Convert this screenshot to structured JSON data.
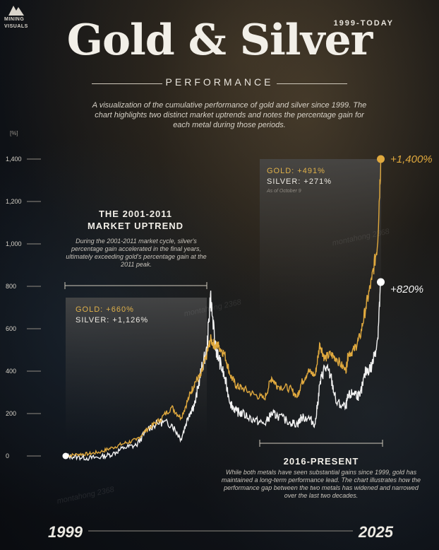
{
  "brand": {
    "line1": "MINING",
    "line2": "VISUALS"
  },
  "header": {
    "year_range": "1999-TODAY",
    "title": "Gold & Silver",
    "subtitle": "PERFORMANCE",
    "intro": "A visualization of the cumulative performance of gold and silver since 1999. The chart highlights two distinct market uptrends and notes the percentage gain for each metal during those periods."
  },
  "colors": {
    "gold": "#e0a93e",
    "silver": "#f2f2f2",
    "panel": "#3a3a3a"
  },
  "annotations": {
    "uptrend": {
      "title_line1": "THE 2001-2011",
      "title_line2": "MARKET UPTREND",
      "text": "During the 2001-2011 market cycle, silver's percentage gain accelerated in the final years, ultimately exceeding gold's percentage gain at the 2011 peak.",
      "gold_gain": "GOLD: +660%",
      "silver_gain": "SILVER: +1,126%"
    },
    "present": {
      "title": "2016-PRESENT",
      "text": "While both metals have seen substantial gains since 1999, gold has maintained a long-term performance lead. The chart illustrates how the performance gap between the two metals has widened and narrowed over the last two decades.",
      "gold_gain": "GOLD: +491%",
      "silver_gain": "SILVER: +271%",
      "as_of": "As of October 9"
    }
  },
  "end_labels": {
    "gold": "+1,400%",
    "silver": "+820%"
  },
  "axis": {
    "start_year": "1999",
    "end_year": "2025"
  },
  "watermarks": [
    "montahong 2368",
    "montahong 2368",
    "montahong 2368"
  ],
  "chart_data": {
    "type": "line",
    "ylabel": "[%]",
    "ylim": [
      0,
      1400
    ],
    "yticks": [
      0,
      200,
      400,
      600,
      800,
      1000,
      1200,
      1400
    ],
    "ytick_labels": [
      "0",
      "200",
      "400",
      "600",
      "800",
      "1,000",
      "1,200",
      "1,400"
    ],
    "xlim": [
      1999,
      2025.8
    ],
    "x": [
      1999,
      2000,
      2001,
      2002,
      2003,
      2004,
      2005,
      2006,
      2007,
      2008,
      2008.8,
      2009.5,
      2010,
      2010.5,
      2011,
      2011.3,
      2011.7,
      2012,
      2012.5,
      2013,
      2013.5,
      2014,
      2015,
      2015.9,
      2016.5,
      2017,
      2018,
      2018.7,
      2019,
      2019.6,
      2020.2,
      2020.6,
      2021,
      2021.5,
      2022,
      2022.8,
      2023,
      2023.5,
      2024,
      2024.5,
      2025,
      2025.5,
      2025.77
    ],
    "series": [
      {
        "name": "GOLD",
        "values": [
          0,
          8,
          10,
          20,
          40,
          60,
          75,
          130,
          170,
          230,
          180,
          280,
          350,
          380,
          480,
          550,
          520,
          520,
          480,
          380,
          330,
          320,
          290,
          270,
          370,
          330,
          320,
          280,
          340,
          400,
          380,
          530,
          460,
          480,
          460,
          400,
          480,
          500,
          560,
          700,
          830,
          1000,
          1400
        ]
      },
      {
        "name": "SILVER",
        "values": [
          0,
          -5,
          -10,
          -5,
          10,
          40,
          50,
          130,
          160,
          150,
          80,
          200,
          250,
          400,
          500,
          760,
          520,
          460,
          370,
          250,
          210,
          200,
          170,
          150,
          200,
          190,
          160,
          150,
          180,
          180,
          150,
          340,
          420,
          380,
          250,
          230,
          280,
          300,
          280,
          400,
          420,
          550,
          820
        ]
      }
    ]
  }
}
